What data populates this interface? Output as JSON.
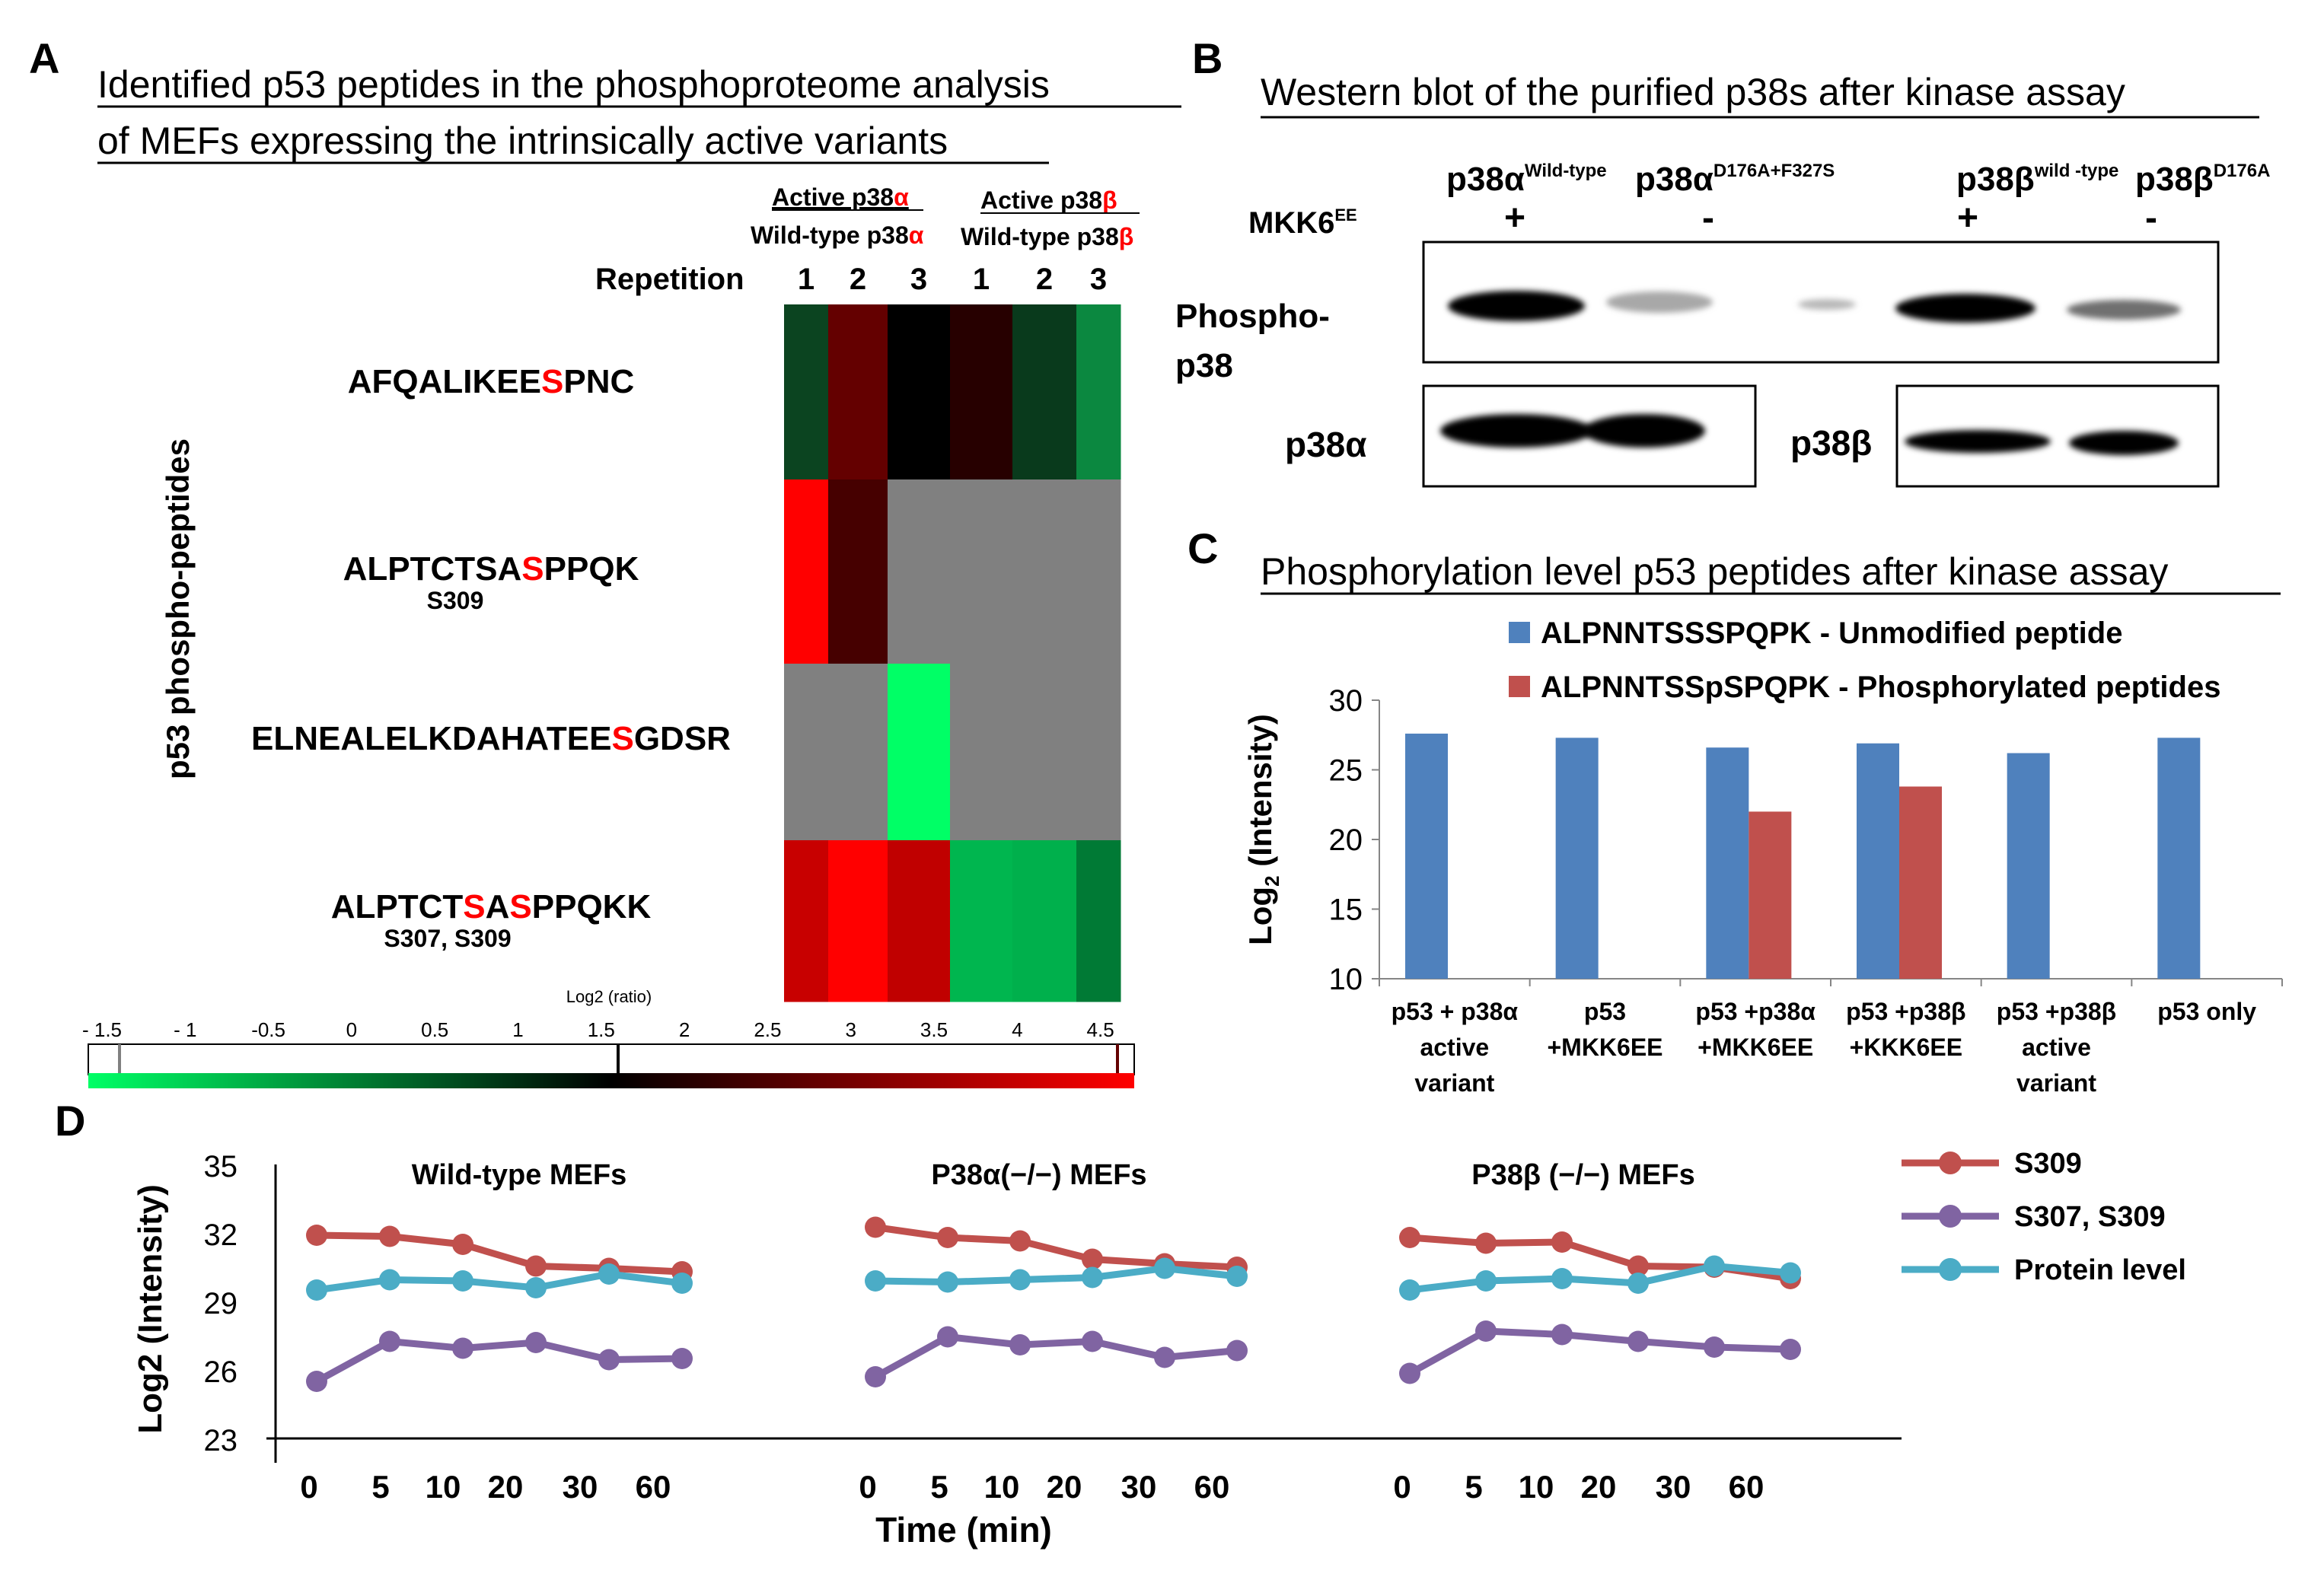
{
  "panel_letters": {
    "a": "A",
    "b": "B",
    "c": "C",
    "d": "D"
  },
  "panel_a": {
    "title_line1": "Identified p53 peptides in the phosphoproteome analysis",
    "title_line2": "of MEFs expressing the intrinsically active variants",
    "group_alpha": {
      "active": "Active p38",
      "wildtype": "Wild-type p38",
      "greek": "α"
    },
    "group_beta": {
      "active": "Active  p38",
      "wildtype": "Wild-type p38",
      "greek": "β"
    },
    "repetition_label": "Repetition",
    "repetitions": [
      "1",
      "2",
      "3",
      "1",
      "2",
      "3"
    ],
    "y_axis_label": "p53 phospho-peptides",
    "peptides": [
      {
        "pre": "AFQALIKEE",
        "s1": "S",
        "mid": "",
        "s2": "",
        "post": "PNC",
        "site": ""
      },
      {
        "pre": "ALPTCTSA",
        "s1": "S",
        "mid": "",
        "s2": "",
        "post": "PPQK",
        "site": "S309"
      },
      {
        "pre": "ELNEALELKDAHATEE",
        "s1": "S",
        "mid": "",
        "s2": "",
        "post": "GDSR",
        "site": ""
      },
      {
        "pre": "ALPTCT",
        "s1": "S",
        "mid": "A",
        "s2": "S",
        "post": "PPQKK",
        "site": "S307, S309"
      }
    ],
    "heatmap_colors": [
      [
        "#0b4420",
        "#640000",
        "#000000",
        "#270000",
        "#093a1c",
        "#0b8840"
      ],
      [
        "#ff0000",
        "#460000",
        "#808080",
        "#808080",
        "#808080",
        "#808080"
      ],
      [
        "#808080",
        "#808080",
        "#00ff66",
        "#808080",
        "#808080",
        "#808080"
      ],
      [
        "#c80000",
        "#ff0000",
        "#c00000",
        "#00b64f",
        "#00b04c",
        "#007a35"
      ]
    ],
    "colorbar": {
      "title": "Log2 (ratio)",
      "ticks": [
        "- 1.5",
        "- 1",
        "-0.5",
        "0",
        "0.5",
        "1",
        "1.5",
        "2",
        "2.5",
        "3",
        "3.5",
        "4",
        "4.5"
      ],
      "colors": [
        "#00ff66",
        "#000000",
        "#ff0000"
      ],
      "marker_colors": [
        "#808080",
        "#000000",
        "#640000"
      ]
    }
  },
  "panel_b": {
    "title": "Western blot of the purified p38s after kinase assay",
    "lanes": [
      {
        "name": "p38α",
        "sup": "Wild-type",
        "mkk": "+"
      },
      {
        "name": "p38α",
        "sup": "D176A+F327S",
        "mkk": "-"
      },
      {
        "name": "p38β",
        "sup": "wild -type",
        "mkk": "+"
      },
      {
        "name": "p38β",
        "sup": "D176A",
        "mkk": "-"
      }
    ],
    "mkk_label": "MKK6",
    "mkk_sup": "EE",
    "phospho_label_line1": "Phospho-",
    "phospho_label_line2": "p38",
    "alpha_label": "p38α",
    "beta_label": "p38β"
  },
  "panel_c": {
    "title": "Phosphorylation level p53 peptides after kinase assay",
    "ylabel": "Log",
    "ylabel_sub": "2",
    "ylabel_rest": " (Intensity)",
    "legend": [
      {
        "name": "ALPNNTSSSPQPK -  Unmodified peptide",
        "color": "#4f81bd"
      },
      {
        "name": "ALPNNTSSpSPQPK -  Phosphorylated peptides",
        "color": "#c0504d"
      }
    ],
    "chart_data": {
      "type": "bar",
      "title": "Phosphorylation level p53 peptides after kinase assay",
      "ylabel": "Log2 (Intensity)",
      "ylim": [
        10,
        30
      ],
      "yticks": [
        "10",
        "15",
        "20",
        "25",
        "30"
      ],
      "categories": [
        [
          "p53 + p38α",
          "active",
          "variant"
        ],
        [
          "p53",
          "+MKK6EE"
        ],
        [
          "p53 +p38α",
          "+MKK6EE"
        ],
        [
          "p53 +p38β",
          "+KKK6EE"
        ],
        [
          "p53 +p38β",
          "active",
          "variant"
        ],
        [
          "p53 only"
        ]
      ],
      "series": [
        {
          "name": "ALPNNTSSSPQPK -  Unmodified peptide",
          "color": "#4f81bd",
          "values": [
            27.6,
            27.3,
            26.6,
            26.9,
            26.2,
            27.3
          ]
        },
        {
          "name": "ALPNNTSSpSPQPK -  Phosphorylated peptides",
          "color": "#c0504d",
          "values": [
            null,
            null,
            22.0,
            23.8,
            null,
            null
          ]
        }
      ]
    }
  },
  "panel_d": {
    "ylabel": "Log2 (Intensity)",
    "xlabel": "Time (min)",
    "legend": [
      {
        "name": "S309",
        "color": "#c0504d"
      },
      {
        "name": "S307, S309",
        "color": "#8064a2"
      },
      {
        "name": "Protein level",
        "color": "#4bacc6"
      }
    ],
    "chart_data": {
      "type": "line",
      "ylim": [
        23,
        35
      ],
      "yticks": [
        "23",
        "26",
        "29",
        "32",
        "35"
      ],
      "xticks": [
        "0",
        "5",
        "10",
        "20",
        "30",
        "60"
      ],
      "panels": [
        {
          "title": "Wild-type MEFs",
          "series": [
            {
              "name": "S309",
              "values": [
                31.9,
                31.85,
                31.5,
                30.55,
                30.45,
                30.3
              ]
            },
            {
              "name": "S307, S309",
              "values": [
                25.5,
                27.25,
                26.95,
                27.2,
                26.45,
                26.5
              ]
            },
            {
              "name": "Protein level",
              "values": [
                29.5,
                29.95,
                29.9,
                29.6,
                30.2,
                29.8
              ]
            }
          ]
        },
        {
          "title": "P38α(−/−) MEFs",
          "series": [
            {
              "name": "S309",
              "values": [
                32.25,
                31.8,
                31.65,
                30.85,
                30.65,
                30.5
              ]
            },
            {
              "name": "S307, S309",
              "values": [
                25.7,
                27.45,
                27.1,
                27.25,
                26.55,
                26.85
              ]
            },
            {
              "name": "Protein level",
              "values": [
                29.9,
                29.85,
                29.95,
                30.05,
                30.45,
                30.1
              ]
            }
          ]
        },
        {
          "title": "P38β (−/−) MEFs",
          "series": [
            {
              "name": "S309",
              "values": [
                31.8,
                31.55,
                31.6,
                30.55,
                30.5,
                30.0
              ]
            },
            {
              "name": "S307, S309",
              "values": [
                25.85,
                27.7,
                27.55,
                27.25,
                27.0,
                26.9
              ]
            },
            {
              "name": "Protein level",
              "values": [
                29.5,
                29.9,
                30.0,
                29.8,
                30.55,
                30.25
              ]
            }
          ]
        }
      ]
    }
  }
}
